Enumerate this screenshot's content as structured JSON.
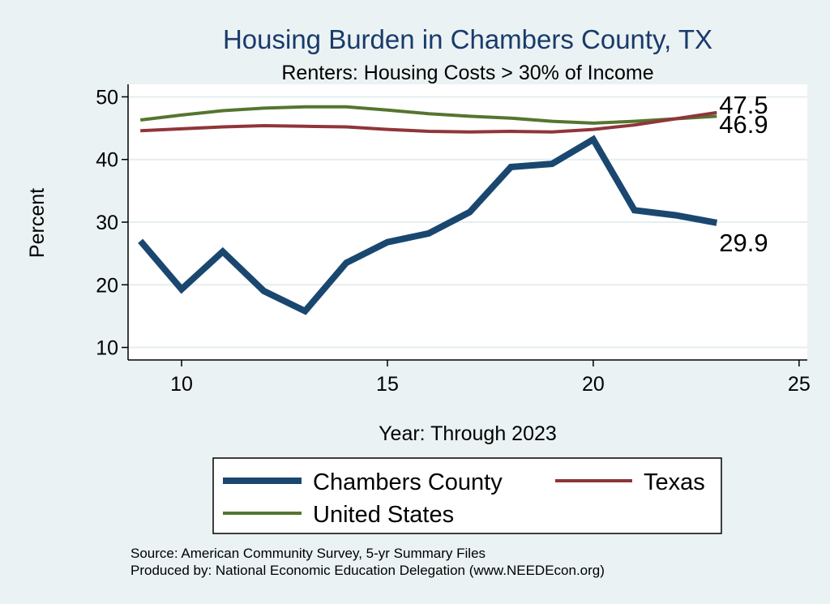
{
  "chart_data": {
    "type": "line",
    "title": "Housing Burden in Chambers County, TX",
    "subtitle": "Renters: Housing Costs > 30% of Income",
    "xlabel": "Year: Through 2023",
    "ylabel": "Percent",
    "xlim": [
      8.7,
      25.2
    ],
    "ylim": [
      8,
      52
    ],
    "xticks": [
      10,
      15,
      20,
      25
    ],
    "yticks": [
      10,
      20,
      30,
      40,
      50
    ],
    "grid": true,
    "legend_position": "bottom",
    "x": [
      9,
      10,
      11,
      12,
      13,
      14,
      15,
      16,
      17,
      18,
      19,
      20,
      21,
      22,
      23
    ],
    "series": [
      {
        "name": "Chambers County",
        "color": "#1a476f",
        "values": [
          27.0,
          19.3,
          25.3,
          19.0,
          15.8,
          23.5,
          26.8,
          28.2,
          31.6,
          38.8,
          39.3,
          43.2,
          31.9,
          31.1,
          29.9
        ],
        "end_label": "29.9"
      },
      {
        "name": "Texas",
        "color": "#90353b",
        "values": [
          44.6,
          44.9,
          45.2,
          45.4,
          45.3,
          45.2,
          44.8,
          44.5,
          44.4,
          44.5,
          44.4,
          44.8,
          45.5,
          46.5,
          47.5
        ],
        "end_label": "47.5"
      },
      {
        "name": "United States",
        "color": "#55752f",
        "values": [
          46.3,
          47.1,
          47.8,
          48.2,
          48.4,
          48.4,
          47.9,
          47.3,
          46.9,
          46.6,
          46.1,
          45.8,
          46.1,
          46.5,
          46.9
        ],
        "end_label": "46.9"
      }
    ],
    "notes": [
      "Source: American Community Survey, 5-yr Summary Files",
      "Produced by: National Economic Education Delegation (www.NEEDEcon.org)"
    ]
  }
}
